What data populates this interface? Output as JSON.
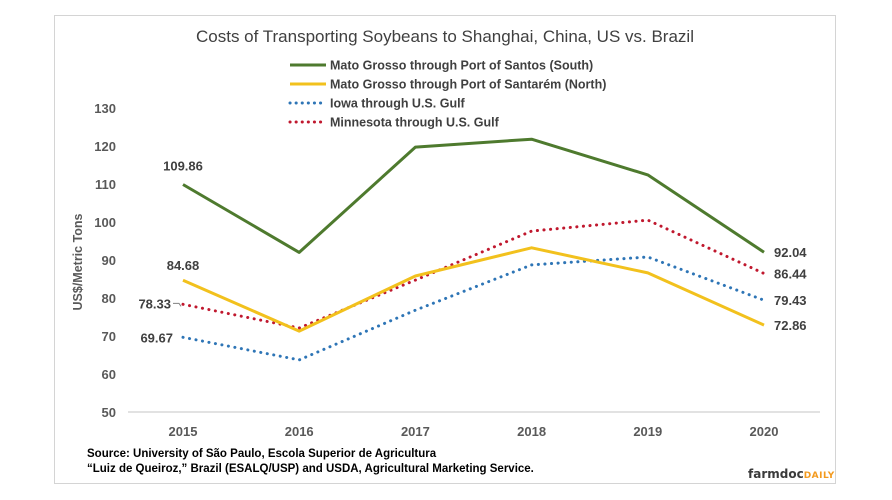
{
  "chart_data": {
    "type": "line",
    "title": "Costs of Transporting Soybeans to Shanghai, China, US vs. Brazil",
    "xlabel": "",
    "ylabel": "US$/Metric Tons",
    "categories": [
      "2015",
      "2016",
      "2017",
      "2018",
      "2019",
      "2020"
    ],
    "ylim": [
      50,
      130
    ],
    "yticks": [
      50,
      60,
      70,
      80,
      90,
      100,
      110,
      120,
      130
    ],
    "grid": false,
    "legend_position": "top-center",
    "series": [
      {
        "name": "Mato Grosso through Port of Santos (South)",
        "color": "#4e7a2e",
        "style": "solid",
        "values": [
          109.86,
          92.0,
          119.7,
          121.8,
          112.4,
          92.04
        ],
        "labels": {
          "0": "109.86",
          "5": "92.04"
        }
      },
      {
        "name": "Mato Grosso through Port of Santarém (North)",
        "color": "#f2c11d",
        "style": "solid",
        "values": [
          84.68,
          71.3,
          85.8,
          93.2,
          86.6,
          72.86
        ],
        "labels": {
          "0": "84.68",
          "5": "72.86"
        }
      },
      {
        "name": "Iowa through U.S. Gulf",
        "color": "#2e75b6",
        "style": "dotted",
        "values": [
          69.67,
          63.7,
          76.8,
          88.7,
          90.8,
          79.43
        ],
        "labels": {
          "0": "69.67",
          "5": "79.43"
        }
      },
      {
        "name": "Minnesota through U.S. Gulf",
        "color": "#c0182e",
        "style": "dotted",
        "values": [
          78.33,
          72.1,
          84.7,
          97.6,
          100.5,
          86.44
        ],
        "labels": {
          "0": "78.33",
          "5": "86.44"
        }
      }
    ]
  },
  "source": {
    "line1": "Source: University of São Paulo, Escola Superior de Agricultura",
    "line2": "“Luiz de Queiroz,” Brazil (ESALQ/USP)  and USDA, Agricultural Marketing Service."
  },
  "brand": {
    "part1": "farmdoc",
    "part2": "DAILY"
  }
}
